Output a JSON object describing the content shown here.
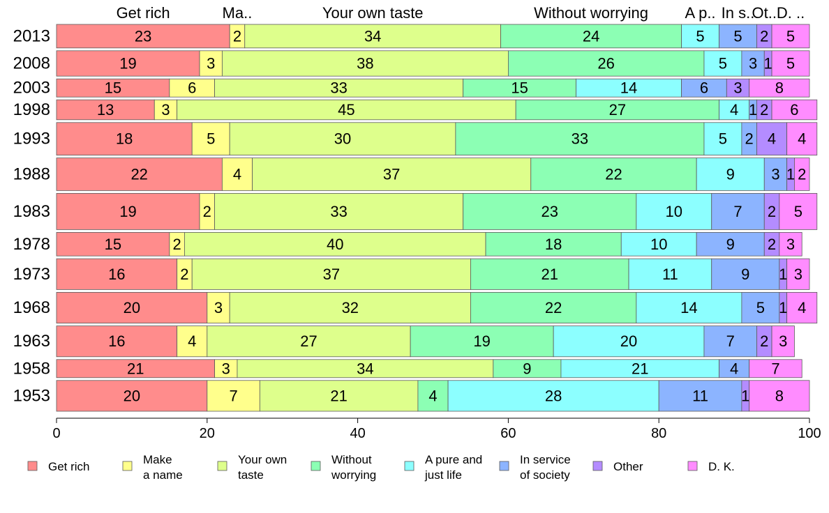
{
  "chart_data": {
    "type": "bar",
    "orientation": "horizontal",
    "stacked": true,
    "categories": [
      "2013",
      "2008",
      "2003",
      "1998",
      "1993",
      "1988",
      "1983",
      "1978",
      "1973",
      "1968",
      "1963",
      "1958",
      "1953"
    ],
    "series": [
      {
        "name": "Get rich",
        "legend_label": [
          "Get rich"
        ],
        "top_label": "Get rich",
        "color": "#ff8c8c",
        "values": [
          23,
          19,
          15,
          13,
          18,
          22,
          19,
          15,
          16,
          20,
          16,
          21,
          20
        ]
      },
      {
        "name": "Make a name",
        "legend_label": [
          "Make",
          "a name"
        ],
        "top_label": "Ma..",
        "color": "#ffff8c",
        "values": [
          2,
          3,
          6,
          3,
          5,
          4,
          2,
          2,
          2,
          3,
          4,
          3,
          7
        ]
      },
      {
        "name": "Your own taste",
        "legend_label": [
          "Your own",
          "taste"
        ],
        "top_label": "Your own taste",
        "color": "#deff8c",
        "values": [
          34,
          38,
          33,
          45,
          30,
          37,
          33,
          40,
          37,
          32,
          27,
          34,
          21
        ]
      },
      {
        "name": "Without worrying",
        "legend_label": [
          "Without",
          "worrying"
        ],
        "top_label": "Without worrying",
        "color": "#8cffb4",
        "values": [
          24,
          26,
          15,
          27,
          33,
          22,
          23,
          18,
          21,
          22,
          19,
          9,
          4
        ]
      },
      {
        "name": "A pure and just life",
        "legend_label": [
          "A pure and",
          "just life"
        ],
        "top_label": "A p..",
        "color": "#8cffff",
        "values": [
          5,
          5,
          14,
          4,
          5,
          9,
          10,
          10,
          11,
          14,
          20,
          21,
          28
        ]
      },
      {
        "name": "In service of society",
        "legend_label": [
          "In service",
          "of society"
        ],
        "top_label": "In s..",
        "color": "#8cb4ff",
        "values": [
          5,
          3,
          6,
          1,
          2,
          3,
          7,
          9,
          9,
          5,
          7,
          4,
          11
        ]
      },
      {
        "name": "Other",
        "legend_label": [
          "Other"
        ],
        "top_label": "Ot..",
        "color": "#b48cff",
        "values": [
          2,
          1,
          3,
          2,
          4,
          1,
          2,
          2,
          1,
          1,
          2,
          0,
          1
        ]
      },
      {
        "name": "D. K.",
        "legend_label": [
          "D. K."
        ],
        "top_label": "D. ..",
        "color": "#ff8cff",
        "values": [
          5,
          5,
          8,
          6,
          4,
          2,
          5,
          3,
          3,
          4,
          3,
          7,
          8
        ]
      }
    ],
    "bar_weight": [
      13,
      14,
      10,
      11,
      18,
      18,
      20,
      13,
      17,
      17,
      17,
      10,
      17
    ],
    "xlim": [
      0,
      100
    ],
    "xticks": [
      0,
      20,
      40,
      60,
      80,
      100
    ],
    "legend_position": "bottom",
    "title": "",
    "xlabel": "",
    "ylabel": "",
    "grid": false
  }
}
